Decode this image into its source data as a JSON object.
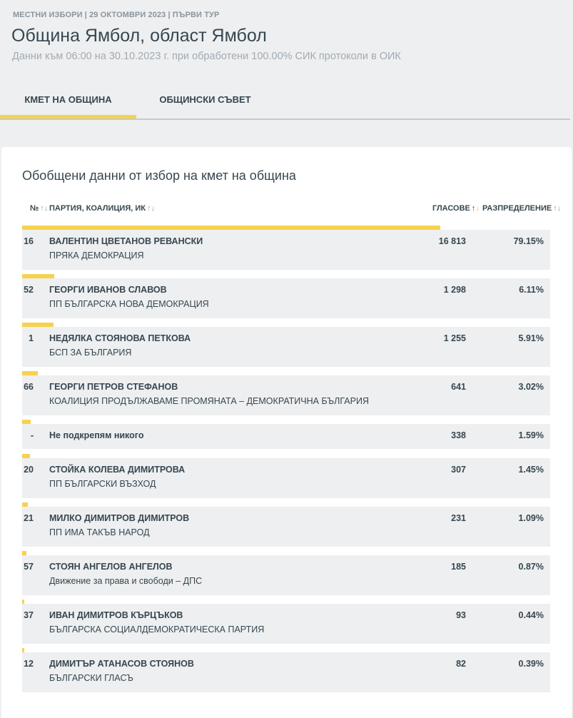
{
  "header": {
    "breadcrumb": "МЕСТНИ ИЗБОРИ | 29 ОКТОМВРИ 2023 | ПЪРВИ ТУР",
    "title": "Община Ямбол, област Ямбол",
    "subtitle": "Данни към 06:00 на 30.10.2023 г. при обработени 100.00% СИК протоколи в ОИК"
  },
  "tabs": [
    {
      "label": "КМЕТ НА ОБЩИНА",
      "active": true
    },
    {
      "label": "ОБЩИНСКИ СЪВЕТ",
      "active": false
    }
  ],
  "card": {
    "title": "Обобщени данни от избор на кмет на община",
    "columns": {
      "num": "№",
      "party": "ПАРТИЯ, КОАЛИЦИЯ, ИК",
      "votes": "ГЛАСОВЕ",
      "distribution": "РАЗПРЕДЕЛЕНИЕ"
    }
  },
  "colors": {
    "accent": "#f6d24e",
    "row_bg": "#edeff1",
    "text": "#37474f"
  },
  "rows": [
    {
      "num": "16",
      "name": "ВАЛЕНТИН ЦВЕТАНОВ РЕВАНСКИ",
      "party": "ПРЯКА ДЕМОКРАЦИЯ",
      "votes": "16 813",
      "pct": "79.15%",
      "share": 79.15
    },
    {
      "num": "52",
      "name": "ГЕОРГИ ИВАНОВ СЛАВОВ",
      "party": "ПП БЪЛГАРСКА НОВА ДЕМОКРАЦИЯ",
      "votes": "1 298",
      "pct": "6.11%",
      "share": 6.11
    },
    {
      "num": "1",
      "name": "НЕДЯЛКА СТОЯНОВА ПЕТКОВА",
      "party": "БСП ЗА БЪЛГАРИЯ",
      "votes": "1 255",
      "pct": "5.91%",
      "share": 5.91
    },
    {
      "num": "66",
      "name": "ГЕОРГИ ПЕТРОВ СТЕФАНОВ",
      "party": "КОАЛИЦИЯ ПРОДЪЛЖАВАМЕ ПРОМЯНАТА – ДЕМОКРАТИЧНА БЪЛГАРИЯ",
      "votes": "641",
      "pct": "3.02%",
      "share": 3.02
    },
    {
      "num": "-",
      "name": "Не подкрепям никого",
      "party": "",
      "votes": "338",
      "pct": "1.59%",
      "share": 1.59
    },
    {
      "num": "20",
      "name": "СТОЙКА КОЛЕВА ДИМИТРОВА",
      "party": "ПП БЪЛГАРСКИ ВЪЗХОД",
      "votes": "307",
      "pct": "1.45%",
      "share": 1.45
    },
    {
      "num": "21",
      "name": "МИЛКО ДИМИТРОВ ДИМИТРОВ",
      "party": "ПП ИМА ТАКЪВ НАРОД",
      "votes": "231",
      "pct": "1.09%",
      "share": 1.09
    },
    {
      "num": "57",
      "name": "СТОЯН АНГЕЛОВ АНГЕЛОВ",
      "party": "Движение за права и свободи – ДПС",
      "votes": "185",
      "pct": "0.87%",
      "share": 0.87
    },
    {
      "num": "37",
      "name": "ИВАН ДИМИТРОВ КЪРЦЪКОВ",
      "party": "БЪЛГАРСКА СОЦИАЛДЕМОКРАТИЧЕСКА ПАРТИЯ",
      "votes": "93",
      "pct": "0.44%",
      "share": 0.44
    },
    {
      "num": "12",
      "name": "ДИМИТЪР АТАНАСОВ СТОЯНОВ",
      "party": "БЪЛГАРСКИ ГЛАСЪ",
      "votes": "82",
      "pct": "0.39%",
      "share": 0.39
    }
  ]
}
